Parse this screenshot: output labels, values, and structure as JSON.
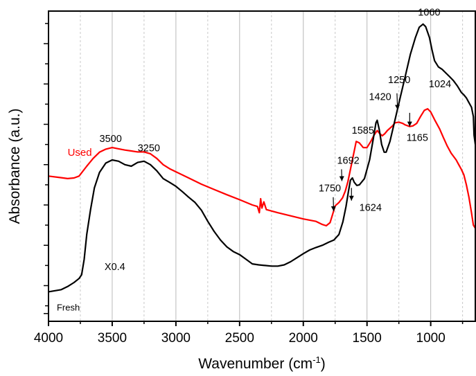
{
  "chart_data": {
    "type": "line",
    "xlabel_main": "Wavenumber (cm",
    "xlabel_sup": "-1",
    "xlabel_end": ")",
    "ylabel": "Absorbance (a.u.)",
    "x_reversed": true,
    "xlim": [
      4000,
      650
    ],
    "ylim": [
      0,
      1
    ],
    "grid": "vertical",
    "x_ticks": [
      4000,
      3500,
      3000,
      2500,
      2000,
      1500,
      1000
    ],
    "x_tick_labels": [
      "4000",
      "3500",
      "3000",
      "2500",
      "2000",
      "1500",
      "1000"
    ],
    "x_minor_ticks": [
      3750,
      3250,
      2750,
      2250,
      1750,
      1250,
      750
    ],
    "y_ticks": [
      0.025,
      0.05,
      0.115,
      0.18,
      0.245,
      0.31,
      0.375,
      0.44,
      0.505,
      0.57,
      0.635,
      0.7,
      0.765,
      0.83,
      0.895,
      0.96
    ],
    "series": [
      {
        "name": "Used",
        "color": "#ff0000",
        "label_color": "#ff0000",
        "label_font_size": 15,
        "label_pos": [
          3850,
          0.534
        ],
        "points": [
          [
            4000,
            0.468
          ],
          [
            3900,
            0.463
          ],
          [
            3850,
            0.46
          ],
          [
            3800,
            0.462
          ],
          [
            3760,
            0.468
          ],
          [
            3700,
            0.5
          ],
          [
            3650,
            0.525
          ],
          [
            3600,
            0.545
          ],
          [
            3550,
            0.555
          ],
          [
            3500,
            0.56
          ],
          [
            3450,
            0.556
          ],
          [
            3400,
            0.552
          ],
          [
            3350,
            0.549
          ],
          [
            3300,
            0.546
          ],
          [
            3250,
            0.546
          ],
          [
            3200,
            0.54
          ],
          [
            3150,
            0.525
          ],
          [
            3100,
            0.505
          ],
          [
            3050,
            0.492
          ],
          [
            3000,
            0.482
          ],
          [
            2900,
            0.462
          ],
          [
            2800,
            0.442
          ],
          [
            2700,
            0.425
          ],
          [
            2600,
            0.408
          ],
          [
            2500,
            0.392
          ],
          [
            2400,
            0.375
          ],
          [
            2360,
            0.37
          ],
          [
            2345,
            0.35
          ],
          [
            2335,
            0.395
          ],
          [
            2325,
            0.365
          ],
          [
            2310,
            0.385
          ],
          [
            2290,
            0.36
          ],
          [
            2200,
            0.35
          ],
          [
            2100,
            0.34
          ],
          [
            2000,
            0.33
          ],
          [
            1900,
            0.322
          ],
          [
            1850,
            0.312
          ],
          [
            1820,
            0.308
          ],
          [
            1790,
            0.318
          ],
          [
            1770,
            0.345
          ],
          [
            1750,
            0.372
          ],
          [
            1720,
            0.383
          ],
          [
            1692,
            0.398
          ],
          [
            1670,
            0.42
          ],
          [
            1650,
            0.45
          ],
          [
            1630,
            0.49
          ],
          [
            1610,
            0.53
          ],
          [
            1585,
            0.58
          ],
          [
            1560,
            0.575
          ],
          [
            1530,
            0.56
          ],
          [
            1500,
            0.56
          ],
          [
            1470,
            0.58
          ],
          [
            1445,
            0.6
          ],
          [
            1420,
            0.615
          ],
          [
            1400,
            0.605
          ],
          [
            1380,
            0.598
          ],
          [
            1360,
            0.605
          ],
          [
            1340,
            0.615
          ],
          [
            1300,
            0.63
          ],
          [
            1280,
            0.64
          ],
          [
            1250,
            0.642
          ],
          [
            1220,
            0.638
          ],
          [
            1200,
            0.633
          ],
          [
            1165,
            0.628
          ],
          [
            1140,
            0.63
          ],
          [
            1110,
            0.638
          ],
          [
            1080,
            0.66
          ],
          [
            1050,
            0.68
          ],
          [
            1024,
            0.685
          ],
          [
            1000,
            0.675
          ],
          [
            970,
            0.65
          ],
          [
            930,
            0.62
          ],
          [
            900,
            0.592
          ],
          [
            870,
            0.565
          ],
          [
            840,
            0.542
          ],
          [
            800,
            0.52
          ],
          [
            780,
            0.505
          ],
          [
            760,
            0.49
          ],
          [
            740,
            0.472
          ],
          [
            720,
            0.44
          ],
          [
            700,
            0.4
          ],
          [
            680,
            0.35
          ],
          [
            665,
            0.31
          ],
          [
            650,
            0.3
          ]
        ]
      },
      {
        "name": "Fresh",
        "color": "#000000",
        "label_color": "#000000",
        "label_font_size": 13,
        "label_pos": [
          3935,
          0.035
        ],
        "points": [
          [
            4000,
            0.095
          ],
          [
            3900,
            0.102
          ],
          [
            3850,
            0.112
          ],
          [
            3800,
            0.125
          ],
          [
            3760,
            0.138
          ],
          [
            3740,
            0.15
          ],
          [
            3720,
            0.2
          ],
          [
            3700,
            0.28
          ],
          [
            3670,
            0.36
          ],
          [
            3640,
            0.43
          ],
          [
            3600,
            0.48
          ],
          [
            3550,
            0.51
          ],
          [
            3500,
            0.52
          ],
          [
            3450,
            0.516
          ],
          [
            3400,
            0.505
          ],
          [
            3350,
            0.5
          ],
          [
            3300,
            0.512
          ],
          [
            3250,
            0.516
          ],
          [
            3200,
            0.505
          ],
          [
            3150,
            0.485
          ],
          [
            3100,
            0.46
          ],
          [
            3050,
            0.448
          ],
          [
            3000,
            0.435
          ],
          [
            2950,
            0.418
          ],
          [
            2900,
            0.4
          ],
          [
            2850,
            0.383
          ],
          [
            2800,
            0.358
          ],
          [
            2750,
            0.322
          ],
          [
            2700,
            0.29
          ],
          [
            2650,
            0.262
          ],
          [
            2600,
            0.24
          ],
          [
            2550,
            0.225
          ],
          [
            2500,
            0.215
          ],
          [
            2450,
            0.2
          ],
          [
            2400,
            0.185
          ],
          [
            2350,
            0.182
          ],
          [
            2300,
            0.18
          ],
          [
            2250,
            0.178
          ],
          [
            2200,
            0.178
          ],
          [
            2150,
            0.182
          ],
          [
            2100,
            0.192
          ],
          [
            2050,
            0.205
          ],
          [
            2000,
            0.218
          ],
          [
            1950,
            0.23
          ],
          [
            1900,
            0.238
          ],
          [
            1850,
            0.245
          ],
          [
            1800,
            0.255
          ],
          [
            1760,
            0.262
          ],
          [
            1720,
            0.28
          ],
          [
            1690,
            0.32
          ],
          [
            1665,
            0.37
          ],
          [
            1645,
            0.42
          ],
          [
            1630,
            0.455
          ],
          [
            1615,
            0.462
          ],
          [
            1600,
            0.448
          ],
          [
            1580,
            0.438
          ],
          [
            1560,
            0.44
          ],
          [
            1520,
            0.46
          ],
          [
            1480,
            0.52
          ],
          [
            1450,
            0.59
          ],
          [
            1430,
            0.64
          ],
          [
            1420,
            0.648
          ],
          [
            1405,
            0.62
          ],
          [
            1385,
            0.57
          ],
          [
            1365,
            0.545
          ],
          [
            1350,
            0.545
          ],
          [
            1320,
            0.58
          ],
          [
            1280,
            0.65
          ],
          [
            1240,
            0.72
          ],
          [
            1200,
            0.79
          ],
          [
            1160,
            0.86
          ],
          [
            1120,
            0.915
          ],
          [
            1090,
            0.948
          ],
          [
            1060,
            0.958
          ],
          [
            1040,
            0.95
          ],
          [
            1010,
            0.915
          ],
          [
            990,
            0.875
          ],
          [
            970,
            0.84
          ],
          [
            940,
            0.82
          ],
          [
            910,
            0.812
          ],
          [
            880,
            0.8
          ],
          [
            850,
            0.788
          ],
          [
            820,
            0.775
          ],
          [
            790,
            0.758
          ],
          [
            760,
            0.738
          ],
          [
            740,
            0.73
          ],
          [
            720,
            0.72
          ],
          [
            700,
            0.705
          ],
          [
            680,
            0.69
          ],
          [
            665,
            0.66
          ],
          [
            660,
            0.6
          ],
          [
            650,
            0.57
          ]
        ]
      }
    ],
    "annotations": [
      {
        "text": "3500",
        "pos": [
          3600,
          0.578
        ],
        "size": 14.5
      },
      {
        "text": "3250",
        "pos": [
          3300,
          0.548
        ],
        "size": 14.5
      },
      {
        "text": "1750",
        "pos": [
          1880,
          0.418
        ],
        "size": 14.5
      },
      {
        "text": "1692",
        "pos": [
          1735,
          0.508
        ],
        "size": 14.5
      },
      {
        "text": "1624",
        "pos": [
          1560,
          0.356
        ],
        "size": 14.5
      },
      {
        "text": "1585",
        "pos": [
          1620,
          0.605
        ],
        "size": 14.5
      },
      {
        "text": "1420",
        "pos": [
          1485,
          0.713
        ],
        "size": 14.5
      },
      {
        "text": "1250",
        "pos": [
          1335,
          0.768
        ],
        "size": 14.5
      },
      {
        "text": "1165",
        "pos": [
          1190,
          0.582
        ],
        "size": 14.5
      },
      {
        "text": "1060",
        "pos": [
          1100,
          0.985
        ],
        "size": 14.5
      },
      {
        "text": "1024",
        "pos": [
          1015,
          0.755
        ],
        "size": 14.5
      },
      {
        "text": "X0.4",
        "pos": [
          3560,
          0.165
        ],
        "size": 17
      }
    ],
    "arrows": [
      {
        "name": "arrow-1750",
        "from": [
          1765,
          0.4
        ],
        "to": [
          1762,
          0.355
        ]
      },
      {
        "name": "arrow-1692",
        "from": [
          1700,
          0.49
        ],
        "to": [
          1697,
          0.452
        ]
      },
      {
        "name": "arrow-1624",
        "from": [
          1622,
          0.43
        ],
        "to": [
          1622,
          0.389
        ]
      },
      {
        "name": "arrow-1250",
        "from": [
          1265,
          0.735
        ],
        "to": [
          1260,
          0.682
        ]
      },
      {
        "name": "arrow-1165",
        "from": [
          1165,
          0.672
        ],
        "to": [
          1165,
          0.628
        ]
      }
    ]
  }
}
